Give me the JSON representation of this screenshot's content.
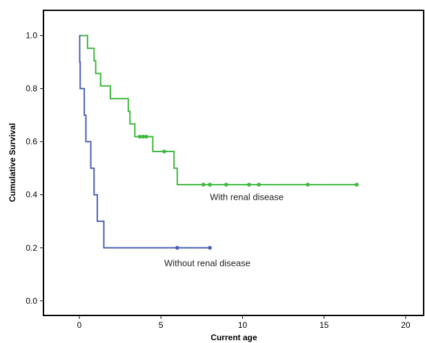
{
  "chart_data": {
    "type": "line",
    "xlabel": "Current age",
    "ylabel": "Cumulative Survival",
    "xlim": [
      -2.2,
      21.1
    ],
    "ylim": [
      -0.055,
      1.095
    ],
    "xticks": [
      0,
      5,
      10,
      15,
      20
    ],
    "yticks": [
      0.0,
      0.2,
      0.4,
      0.6,
      0.8,
      1.0
    ],
    "xtick_labels": [
      "0",
      "5",
      "10",
      "15",
      "20"
    ],
    "ytick_labels": [
      "0.0",
      "0.2",
      "0.4",
      "0.6",
      "0.8",
      "1.0"
    ],
    "grid": false,
    "series": [
      {
        "color": "#3cb83c",
        "steps": [
          [
            0,
            1.0
          ],
          [
            0.5,
            0.952
          ],
          [
            0.9,
            0.905
          ],
          [
            1.0,
            0.857
          ],
          [
            1.3,
            0.81
          ],
          [
            1.9,
            0.762
          ],
          [
            3.0,
            0.714
          ],
          [
            3.1,
            0.667
          ],
          [
            3.4,
            0.619
          ],
          [
            4.5,
            0.563
          ],
          [
            5.8,
            0.5
          ],
          [
            6.0,
            0.438
          ],
          [
            17.0,
            0.438
          ]
        ],
        "censored": [
          [
            3.7,
            0.619
          ],
          [
            3.9,
            0.619
          ],
          [
            4.1,
            0.619
          ],
          [
            5.2,
            0.563
          ],
          [
            7.6,
            0.438
          ],
          [
            8.0,
            0.438
          ],
          [
            9.0,
            0.438
          ],
          [
            10.4,
            0.438
          ],
          [
            11.0,
            0.438
          ],
          [
            14.0,
            0.438
          ],
          [
            17.0,
            0.438
          ]
        ]
      },
      {
        "color": "#4a5eb5",
        "steps": [
          [
            0,
            1.0
          ],
          [
            0.02,
            0.9
          ],
          [
            0.05,
            0.8
          ],
          [
            0.3,
            0.7
          ],
          [
            0.4,
            0.6
          ],
          [
            0.7,
            0.5
          ],
          [
            0.9,
            0.4
          ],
          [
            1.1,
            0.3
          ],
          [
            1.5,
            0.2
          ],
          [
            8.0,
            0.2
          ]
        ],
        "censored": [
          [
            6.0,
            0.2
          ],
          [
            8.0,
            0.2
          ]
        ]
      }
    ],
    "annotations": [
      {
        "text": "With renal disease",
        "x": 8.0,
        "y": 0.38
      },
      {
        "text": "Without renal disease",
        "x": 5.2,
        "y": 0.13
      }
    ]
  }
}
